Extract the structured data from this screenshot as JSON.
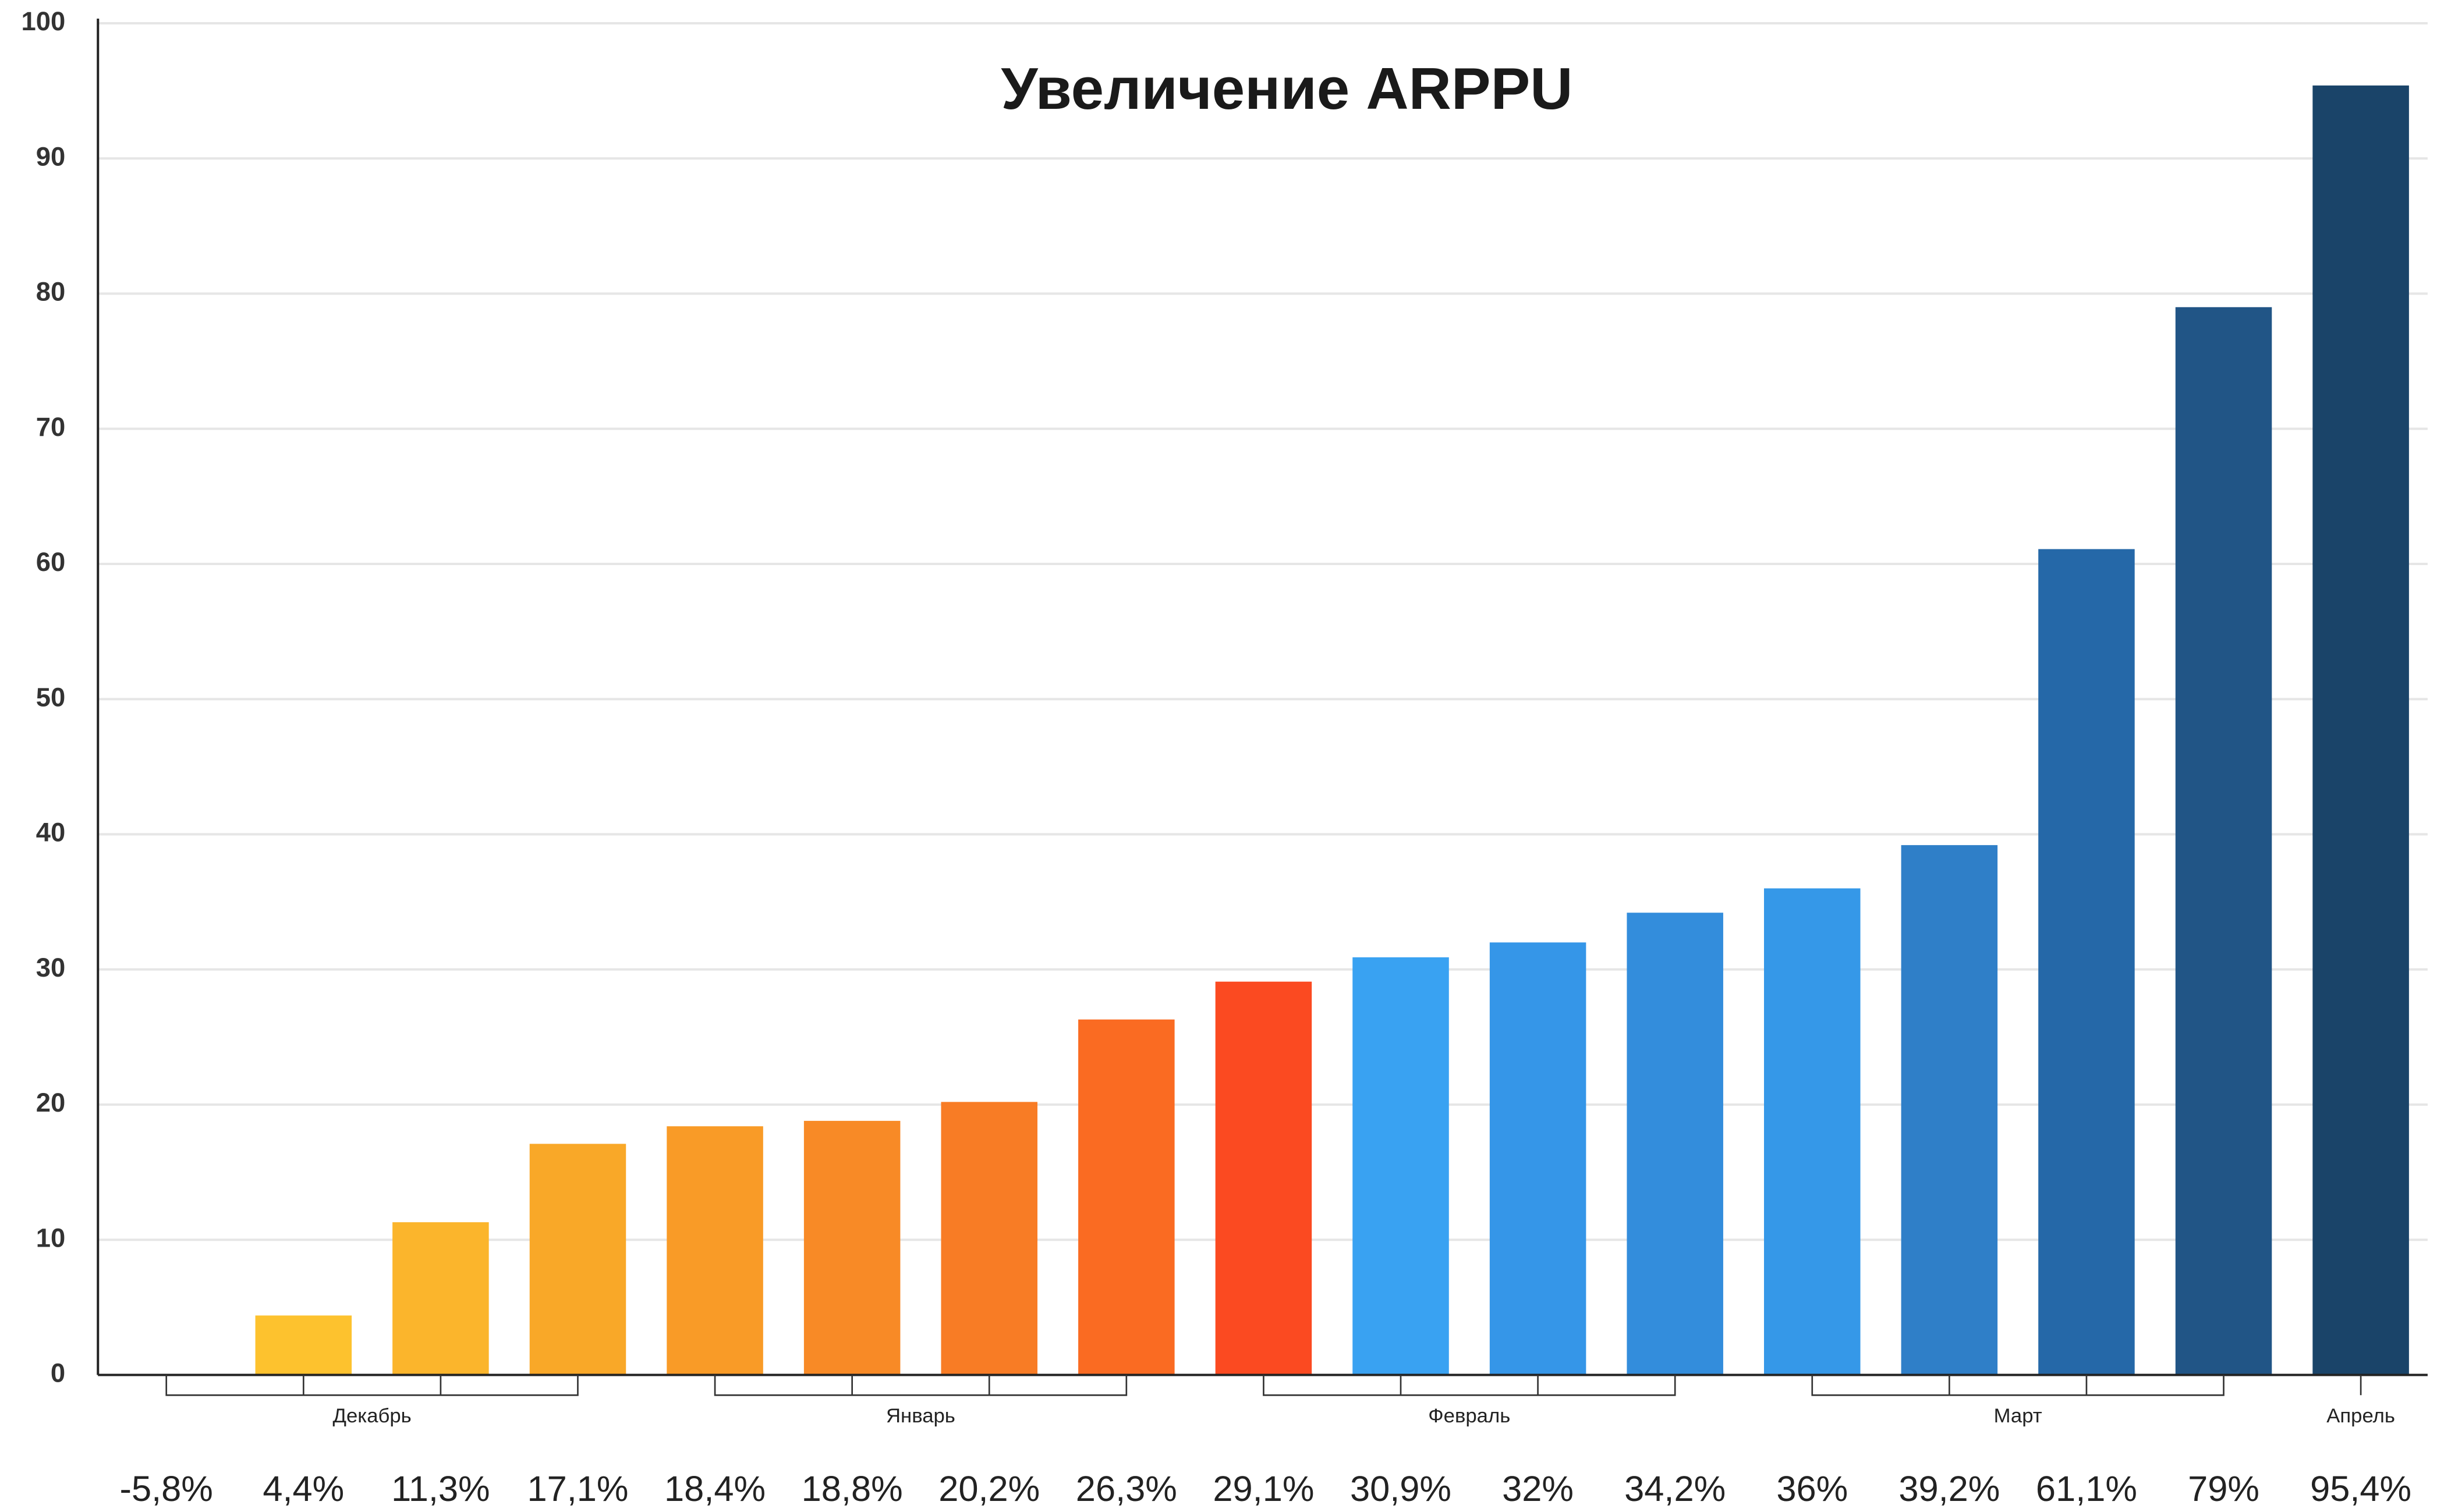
{
  "chart_data": {
    "type": "bar",
    "title": "Увеличение ARPPU",
    "values": [
      -5.8,
      4.4,
      11.3,
      17.1,
      18.4,
      18.8,
      20.2,
      26.3,
      29.1,
      30.9,
      32,
      34.2,
      36,
      39.2,
      61.1,
      79,
      95.4
    ],
    "value_labels": [
      "-5,8%",
      "4,4%",
      "11,3%",
      "17,1%",
      "18,4%",
      "18,8%",
      "20,2%",
      "26,3%",
      "29,1%",
      "30,9%",
      "32%",
      "34,2%",
      "36%",
      "39,2%",
      "61,1%",
      "79%",
      "95,4%"
    ],
    "colors": [
      "#fdc22e",
      "#fdc22e",
      "#fbb52c",
      "#f9a828",
      "#f99b27",
      "#f88a26",
      "#f87c25",
      "#fa6b22",
      "#fb4a21",
      "#39a2f2",
      "#3596e8",
      "#338ddc",
      "#3598e8",
      "#2f7fc8",
      "#2568a8",
      "#215586",
      "#1a4469"
    ],
    "groups": [
      {
        "name": "Декабрь",
        "size": 4
      },
      {
        "name": "Январь",
        "size": 4
      },
      {
        "name": "Февраль",
        "size": 4
      },
      {
        "name": "Март",
        "size": 4
      },
      {
        "name": "Апрель",
        "size": 1
      }
    ],
    "ylim": [
      0,
      100
    ],
    "yticks": [
      0,
      10,
      20,
      30,
      40,
      50,
      60,
      70,
      80,
      90,
      100
    ],
    "grid": true
  }
}
